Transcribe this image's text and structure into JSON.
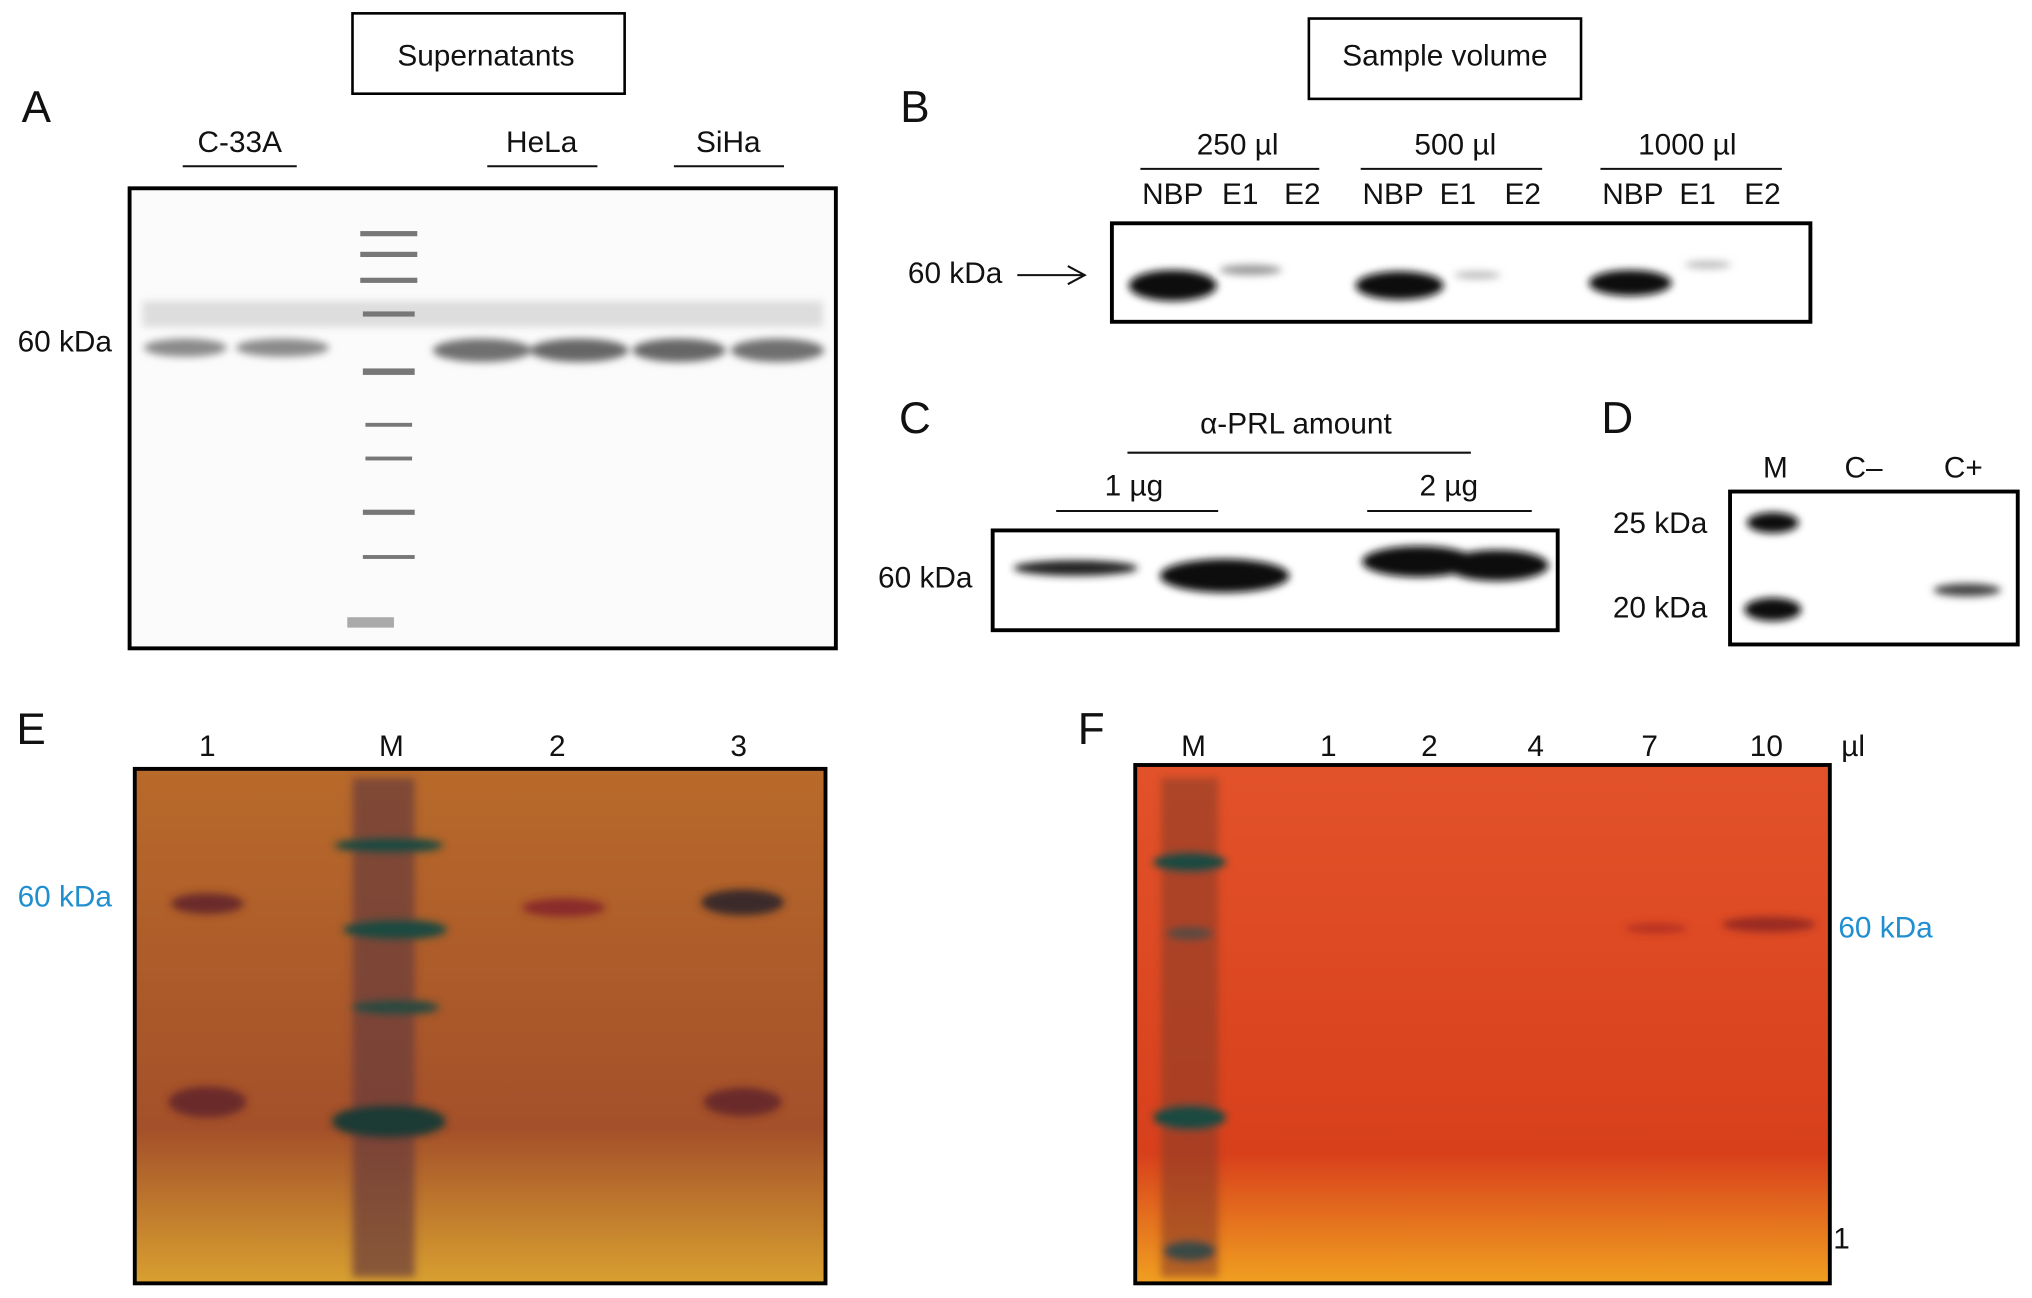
{
  "panel_a": {
    "letter": "A",
    "header": "Supernatants",
    "lanes": [
      "C-33A",
      "HeLa",
      "SiHa"
    ],
    "marker": "60 kDa"
  },
  "panel_b": {
    "letter": "B",
    "header": "Sample volume",
    "groups": [
      "250 µl",
      "500 µl",
      "1000 µl"
    ],
    "lanes": [
      "NBP",
      "E1",
      "E2"
    ],
    "marker": "60 kDa"
  },
  "panel_c": {
    "letter": "C",
    "header": "α-PRL amount",
    "groups": [
      "1 µg",
      "2 µg"
    ],
    "marker": "60 kDa"
  },
  "panel_d": {
    "letter": "D",
    "lanes": [
      "M",
      "C–",
      "C+"
    ],
    "markers": [
      "25 kDa",
      "20 kDa"
    ]
  },
  "panel_e": {
    "letter": "E",
    "lanes": [
      "1",
      "M",
      "2",
      "3"
    ],
    "marker": "60 kDa"
  },
  "panel_f": {
    "letter": "F",
    "lanes": [
      "M",
      "1",
      "2",
      "4",
      "7",
      "10"
    ],
    "unit": "µl",
    "marker": "60 kDa",
    "footnote": "1"
  }
}
